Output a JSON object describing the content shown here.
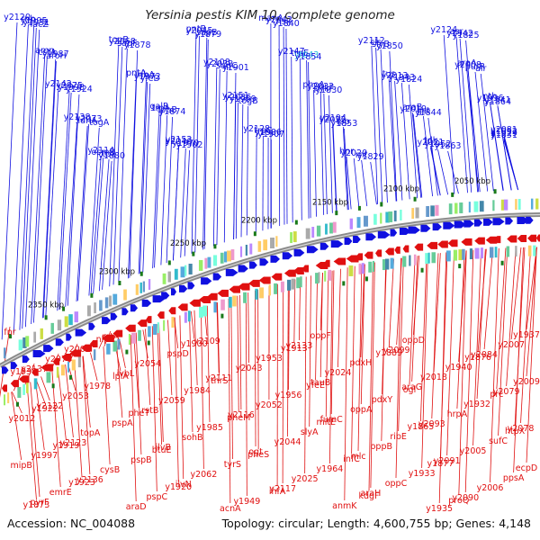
{
  "title": "Yersinia pestis KIM 10, complete genome",
  "footer": {
    "accession": "Accession: NC_004088",
    "info": "Topology: circular; Length: 4,600,755 bp; Genes: 4,148"
  },
  "colors": {
    "forward": "#1010e0",
    "reverse": "#e01010",
    "highlight": "#22bbdd",
    "backbone": "#888888",
    "tick": "#1a7a1a"
  },
  "ticks": [
    "2050 kbp",
    "2100 kbp",
    "2150 kbp",
    "2200 kbp",
    "2250 kbp",
    "2300 kbp",
    "2350 kbp"
  ],
  "forward_labels": [
    "y2120",
    "amn",
    "y2142",
    "y2138",
    "y2114",
    "topB",
    "pntA",
    "galR",
    "y2152",
    "pntB",
    "y2108",
    "y2151",
    "y2128",
    "manA",
    "y2147",
    "phoA",
    "y2104",
    "hnr",
    "y2112",
    "tus",
    "araB",
    "tdk",
    "y2124",
    "araA",
    "nth",
    "y2081",
    "rnb",
    "cstA",
    "y2075",
    "y2073",
    "osmB",
    "y2068",
    "ribA",
    "trpA",
    "y2046",
    "y2045",
    "y2038",
    "y2036",
    "trpC",
    "y2042",
    "trpE",
    "y2032",
    "y2022",
    "y2020",
    "cls",
    "y2013",
    "y2019",
    "y2021",
    "asr",
    "y2008",
    "y1996",
    "y1992",
    "y1995",
    "y1987",
    "y1998",
    "ldhA",
    "tpx",
    "sapF",
    "y1972",
    "tppB",
    "y1970",
    "sapB",
    "sapC",
    "y1969",
    "y1986",
    "hsIJ",
    "yt043",
    "pykF",
    "lpp",
    "rnt",
    "slyB",
    "y1943",
    "gst",
    "y1952",
    "y1942",
    "purR",
    "y1941",
    "y1929",
    "y1931",
    "aroH",
    "y1924",
    "togA",
    "y1880",
    "y1878",
    "yfeD",
    "y1874",
    "y1902",
    "y1879",
    "y1901",
    "togB",
    "y1907",
    "y1840",
    "y1854",
    "y1830",
    "y1853",
    "y1829",
    "y1850",
    "y1824",
    "y1844",
    "y1863",
    "y1825",
    "alr",
    "y1864",
    "y1831",
    "lacZ"
  ],
  "reverse_labels": [
    "fnr",
    "y2137",
    "y2122",
    "y2123",
    "y2136",
    "rstA",
    "ivbL",
    "rstB",
    "ilvB",
    "ilvN",
    "y2109",
    "y2111",
    "y2116",
    "ogt",
    "y2117",
    "y2133",
    "tauB",
    "fumC",
    "mlc",
    "araH",
    "y2099",
    "araG",
    "y2093",
    "y2091",
    "y2090",
    "y2084",
    "y2079",
    "y2078",
    "mipB",
    "pyrF",
    "y2070",
    "y2053",
    "topA",
    "cysB",
    "araD",
    "y2054",
    "y2059",
    "sohB",
    "y2062",
    "acnA",
    "y2043",
    "y2052",
    "y2044",
    "y2025",
    "oppF",
    "y2024",
    "oppA",
    "oppB",
    "oppC",
    "oppD",
    "y2018",
    "hrpA",
    "y2005",
    "y2006",
    "y2007",
    "y2009",
    "y2012",
    "y1997",
    "emrE",
    "y2002",
    "y1978",
    "pspA",
    "pspB",
    "pspC",
    "pspD",
    "y1984",
    "y1985",
    "tyrS",
    "y1949",
    "y1953",
    "y1956",
    "slyA",
    "y1964",
    "anmK",
    "pdxH",
    "pdxY",
    "ribE",
    "y1933",
    "y1935",
    "y1940",
    "y1932",
    "sufC",
    "ppsA",
    "y1937",
    "y1938",
    "y1922",
    "y1919",
    "y1923",
    "nlpC",
    "lplA",
    "pheT",
    "btuE",
    "y1920",
    "y1900",
    "thrS",
    "pheM",
    "pheS",
    "ihfA",
    "y1913",
    "yfeE",
    "mltE",
    "infC",
    "kdgF",
    "y1889",
    "ogl",
    "y1865",
    "y1877",
    "proQ",
    "y1876",
    "prc",
    "htpX",
    "ecpD",
    "y1873"
  ]
}
